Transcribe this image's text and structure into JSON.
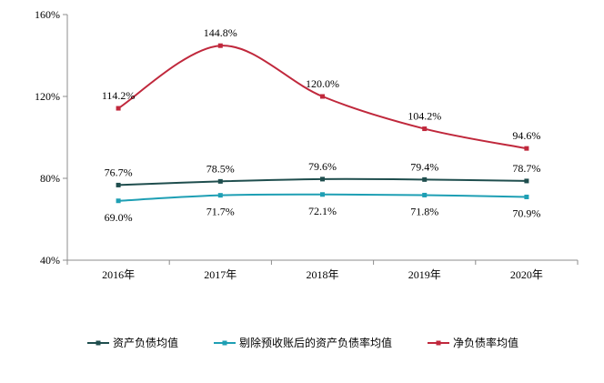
{
  "chart_data": {
    "type": "line",
    "categories": [
      "2016年",
      "2017年",
      "2018年",
      "2019年",
      "2020年"
    ],
    "ylim": [
      40,
      160
    ],
    "yticks": [
      40,
      80,
      120,
      160
    ],
    "ytick_labels": [
      "40%",
      "80%",
      "120%",
      "160%"
    ],
    "smooth": true,
    "grid": false,
    "legend_position": "bottom",
    "series": [
      {
        "name": "资产负债均值",
        "color": "#1f4e4e",
        "marker": "square",
        "values": [
          76.7,
          78.5,
          79.6,
          79.4,
          78.7
        ],
        "labels": [
          "76.7%",
          "78.5%",
          "79.6%",
          "79.4%",
          "78.7%"
        ],
        "label_position": "above"
      },
      {
        "name": "剔除预收账后的资产负债率均值",
        "color": "#1e9fb4",
        "marker": "square",
        "values": [
          69.0,
          71.7,
          72.1,
          71.8,
          70.9
        ],
        "labels": [
          "69.0%",
          "71.7%",
          "72.1%",
          "71.8%",
          "70.9%"
        ],
        "label_position": "below"
      },
      {
        "name": "净负债率均值",
        "color": "#c0283c",
        "marker": "square",
        "values": [
          114.2,
          144.8,
          120.0,
          104.2,
          94.6
        ],
        "labels": [
          "114.2%",
          "144.8%",
          "120.0%",
          "104.2%",
          "94.6%"
        ],
        "label_position": "above"
      }
    ]
  }
}
